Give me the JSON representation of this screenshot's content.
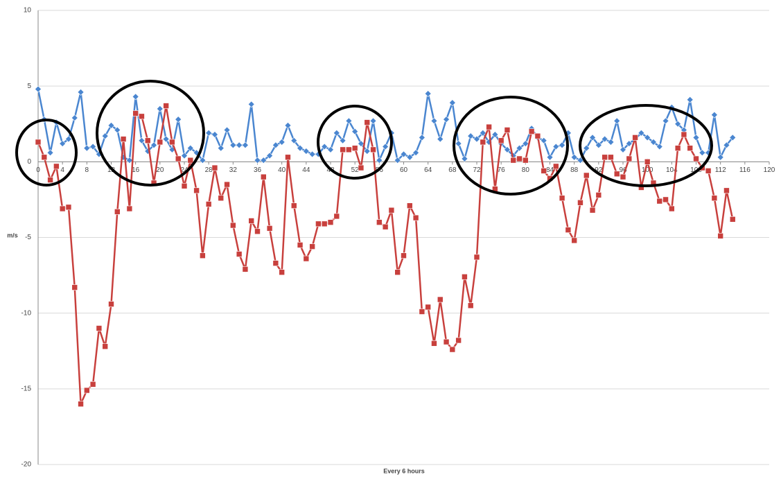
{
  "chart_data": {
    "type": "line",
    "x": [
      0,
      1,
      2,
      3,
      4,
      5,
      6,
      7,
      8,
      9,
      10,
      11,
      12,
      13,
      14,
      15,
      16,
      17,
      18,
      19,
      20,
      21,
      22,
      23,
      24,
      25,
      26,
      27,
      28,
      29,
      30,
      31,
      32,
      33,
      34,
      35,
      36,
      37,
      38,
      39,
      40,
      41,
      42,
      43,
      44,
      45,
      46,
      47,
      48,
      49,
      50,
      51,
      52,
      53,
      54,
      55,
      56,
      57,
      58,
      59,
      60,
      61,
      62,
      63,
      64,
      65,
      66,
      67,
      68,
      69,
      70,
      71,
      72,
      73,
      74,
      75,
      76,
      77,
      78,
      79,
      80,
      81,
      82,
      83,
      84,
      85,
      86,
      87,
      88,
      89,
      90,
      91,
      92,
      93,
      94,
      95,
      96,
      97,
      98,
      99,
      100,
      101,
      102,
      103,
      104,
      105,
      106,
      107,
      108,
      109,
      110,
      111,
      112,
      113,
      114
    ],
    "series": [
      {
        "color": "#4a86d0",
        "marker": "diamond",
        "values": [
          4.8,
          2.8,
          0.6,
          2.6,
          1.2,
          1.5,
          2.9,
          4.6,
          0.9,
          1.0,
          0.5,
          1.7,
          2.4,
          2.1,
          0.3,
          0.1,
          4.3,
          1.4,
          0.7,
          1.1,
          3.5,
          1.5,
          0.8,
          2.8,
          0.4,
          0.9,
          0.6,
          0.1,
          1.9,
          1.8,
          0.9,
          2.1,
          1.1,
          1.1,
          1.1,
          3.8,
          0.1,
          0.1,
          0.4,
          1.1,
          1.3,
          2.4,
          1.4,
          0.9,
          0.7,
          0.5,
          0.5,
          1.0,
          0.8,
          1.9,
          1.4,
          2.7,
          2.0,
          1.2,
          0.7,
          2.7,
          0.1,
          1.0,
          1.9,
          0.1,
          0.5,
          0.3,
          0.6,
          1.6,
          4.5,
          2.7,
          1.5,
          2.8,
          3.9,
          1.2,
          0.2,
          1.7,
          1.5,
          1.9,
          1.3,
          1.8,
          1.2,
          0.8,
          0.4,
          0.9,
          1.2,
          2.2,
          1.6,
          1.4,
          0.3,
          1.0,
          1.1,
          1.9,
          0.3,
          0.1,
          0.9,
          1.6,
          1.1,
          1.5,
          1.3,
          2.7,
          0.8,
          1.2,
          1.5,
          1.9,
          1.6,
          1.3,
          1.0,
          2.7,
          3.6,
          2.5,
          2.1,
          4.1,
          1.6,
          0.6,
          0.6,
          3.1,
          0.3,
          1.1,
          1.6
        ]
      },
      {
        "color": "#c8403d",
        "marker": "square",
        "values": [
          1.3,
          0.3,
          -1.2,
          -0.3,
          -3.1,
          -3.0,
          -8.3,
          -16,
          -15.1,
          -14.7,
          -11,
          -12.2,
          -9.4,
          -3.3,
          1.5,
          -3.1,
          3.2,
          3.0,
          1.4,
          -1.4,
          1.3,
          3.7,
          1.3,
          0.2,
          -1.6,
          0.1,
          -1.9,
          -6.2,
          -2.8,
          -0.4,
          -2.4,
          -1.5,
          -4.2,
          -6.1,
          -7.1,
          -3.9,
          -4.6,
          -1.0,
          -4.4,
          -6.7,
          -7.3,
          0.3,
          -2.9,
          -5.5,
          -6.4,
          -5.6,
          -4.1,
          -4.1,
          -4.0,
          -3.6,
          0.8,
          0.8,
          0.9,
          -0.4,
          2.6,
          0.8,
          -4.0,
          -4.3,
          -3.2,
          -7.3,
          -6.2,
          -2.9,
          -3.7,
          -9.9,
          -9.6,
          -12,
          -9.1,
          -11.9,
          -12.4,
          -11.8,
          -7.6,
          -9.5,
          -6.3,
          1.3,
          2.3,
          -1.8,
          1.4,
          2.1,
          0.1,
          0.2,
          0.1,
          2.0,
          1.7,
          -0.6,
          -1.1,
          -0.3,
          -2.4,
          -4.5,
          -5.2,
          -2.7,
          -0.9,
          -3.2,
          -2.2,
          0.3,
          0.3,
          -0.8,
          -1.0,
          0.2,
          1.6,
          -1.7,
          0.0,
          -1.4,
          -2.6,
          -2.5,
          -3.1,
          0.9,
          1.8,
          0.9,
          0.2,
          -0.4,
          -0.6,
          -2.4,
          -4.9,
          -1.9,
          -3.8
        ]
      }
    ],
    "xlabel": "Every 6 hours",
    "ylabel": "m/s",
    "xlim": [
      0,
      120
    ],
    "xticks": [
      0,
      4,
      8,
      12,
      16,
      20,
      24,
      28,
      32,
      36,
      40,
      44,
      48,
      52,
      56,
      60,
      64,
      68,
      72,
      76,
      80,
      84,
      88,
      92,
      96,
      100,
      104,
      108,
      112,
      116,
      120
    ],
    "ylim": [
      -20,
      10
    ],
    "yticks": [
      -20,
      -15,
      -10,
      -5,
      0,
      5,
      10
    ],
    "grid": true
  }
}
